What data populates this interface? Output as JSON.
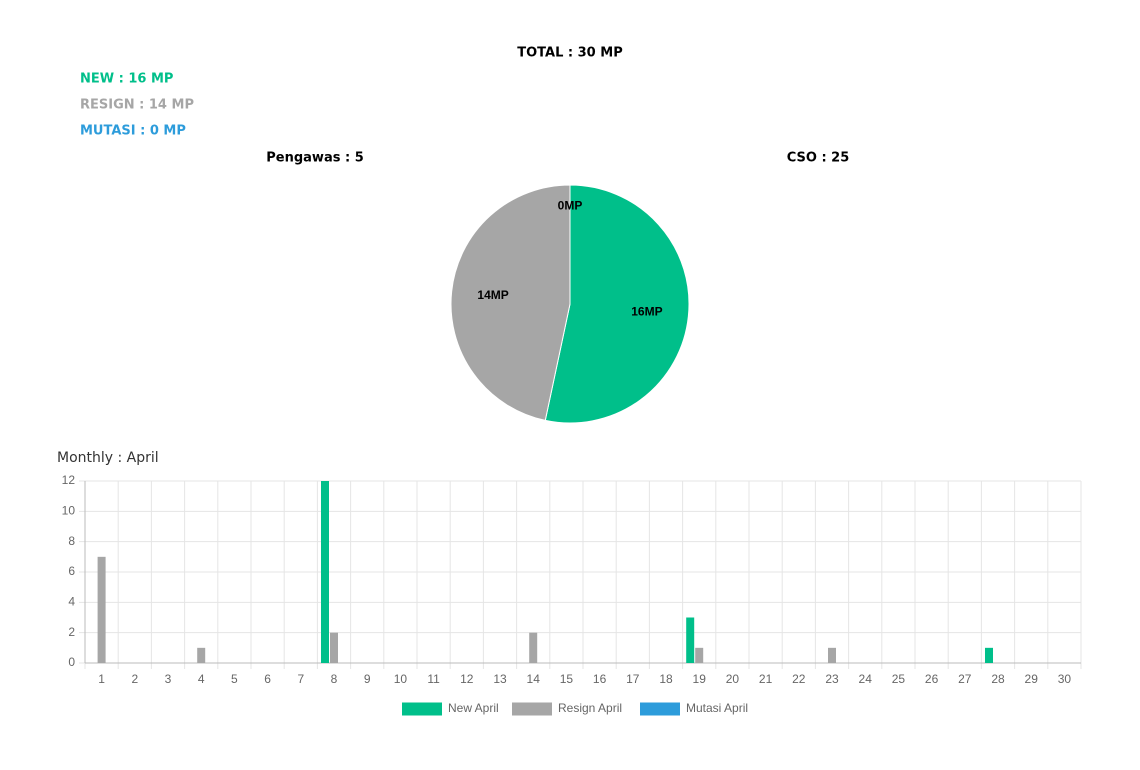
{
  "summary": {
    "total": "TOTAL : 30 MP",
    "new": "NEW : 16 MP",
    "resign": "RESIGN : 14 MP",
    "mutasi": "MUTASI : 0 MP",
    "pengawas": "Pengawas : 5",
    "cso": "CSO : 25"
  },
  "chart_data": [
    {
      "type": "pie",
      "values": [
        16,
        14,
        0
      ],
      "value_labels": [
        "16MP",
        "14MP",
        "0MP"
      ],
      "colors": [
        "#00bf8a",
        "#a6a6a6",
        "#2d9cdb"
      ]
    },
    {
      "type": "bar",
      "title": "Monthly : April",
      "categories": [
        "1",
        "2",
        "3",
        "4",
        "5",
        "6",
        "7",
        "8",
        "9",
        "10",
        "11",
        "12",
        "13",
        "14",
        "15",
        "16",
        "17",
        "18",
        "19",
        "20",
        "21",
        "22",
        "23",
        "24",
        "25",
        "26",
        "27",
        "28",
        "29",
        "30"
      ],
      "series": [
        {
          "name": "New April",
          "color": "#00bf8a",
          "values": [
            0,
            0,
            0,
            0,
            0,
            0,
            0,
            12,
            0,
            0,
            0,
            0,
            0,
            0,
            0,
            0,
            0,
            0,
            3,
            0,
            0,
            0,
            0,
            0,
            0,
            0,
            0,
            1,
            0,
            0
          ]
        },
        {
          "name": "Resign April",
          "color": "#a6a6a6",
          "values": [
            7,
            0,
            0,
            1,
            0,
            0,
            0,
            2,
            0,
            0,
            0,
            0,
            0,
            2,
            0,
            0,
            0,
            0,
            1,
            0,
            0,
            0,
            1,
            0,
            0,
            0,
            0,
            0,
            0,
            0
          ]
        },
        {
          "name": "Mutasi April",
          "color": "#2d9cdb",
          "values": [
            0,
            0,
            0,
            0,
            0,
            0,
            0,
            0,
            0,
            0,
            0,
            0,
            0,
            0,
            0,
            0,
            0,
            0,
            0,
            0,
            0,
            0,
            0,
            0,
            0,
            0,
            0,
            0,
            0,
            0
          ]
        }
      ],
      "ylim": [
        0,
        12
      ],
      "yticks": [
        0,
        2,
        4,
        6,
        8,
        10,
        12
      ],
      "grid": true,
      "legend": "bottom"
    }
  ]
}
